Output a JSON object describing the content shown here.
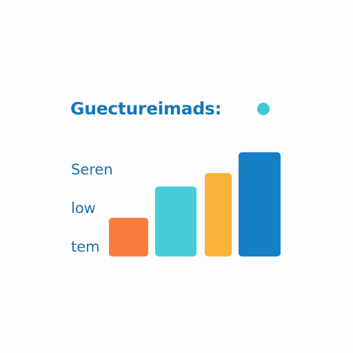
{
  "colors": {
    "title": "#1577b8",
    "label": "#1d6fa8",
    "dot": "#3cc8d7",
    "bars": [
      "#f87a3e",
      "#44ccd9",
      "#fbb23a",
      "#1580c6"
    ]
  },
  "chart_data": {
    "type": "bar",
    "title": "Guectureimads:",
    "categories": [
      "",
      "",
      "",
      ""
    ],
    "values": [
      2.6,
      4.7,
      5.6,
      7.0
    ],
    "ylim": [
      0,
      7.5
    ],
    "y_tick_labels": [
      "Seren",
      "low",
      "tem"
    ],
    "grid": false
  }
}
